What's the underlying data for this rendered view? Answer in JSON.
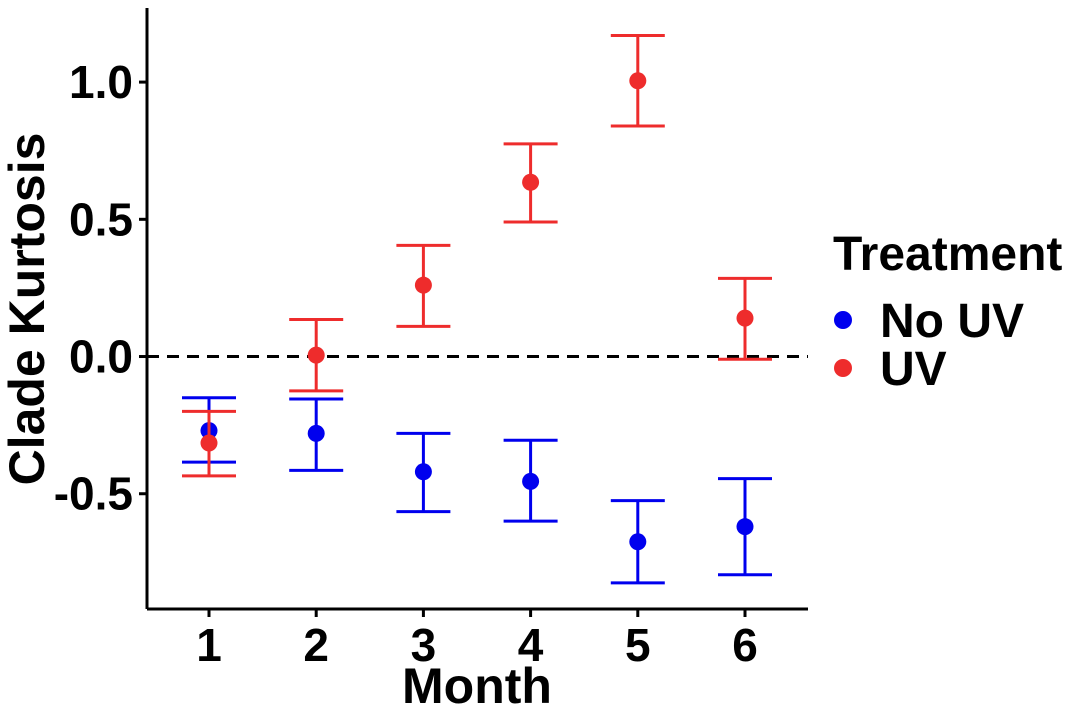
{
  "chart_data": {
    "type": "scatter",
    "xlabel": "Month",
    "ylabel": "Clade Kurtosis",
    "categories": [
      "1",
      "2",
      "3",
      "4",
      "5",
      "6"
    ],
    "ylim": [
      -0.92,
      1.27
    ],
    "y_ticks": [
      "-0.5",
      "0.0",
      "0.5",
      "1.0"
    ],
    "y_tick_values": [
      -0.5,
      0.0,
      0.5,
      1.0
    ],
    "reference_line": {
      "y": 0.0,
      "style": "dashed"
    },
    "grid": false,
    "legend": {
      "title": "Treatment",
      "position": "right"
    },
    "series": [
      {
        "name": "No UV",
        "color": "#0000ee",
        "values": [
          -0.27,
          -0.28,
          -0.42,
          -0.455,
          -0.675,
          -0.62
        ],
        "err_low": [
          -0.385,
          -0.415,
          -0.565,
          -0.6,
          -0.825,
          -0.795
        ],
        "err_high": [
          -0.15,
          -0.155,
          -0.28,
          -0.305,
          -0.525,
          -0.445
        ]
      },
      {
        "name": "UV",
        "color": "#ee2c2c",
        "values": [
          -0.315,
          0.005,
          0.26,
          0.635,
          1.005,
          0.14
        ],
        "err_low": [
          -0.435,
          -0.125,
          0.11,
          0.49,
          0.84,
          -0.01
        ],
        "err_high": [
          -0.2,
          0.135,
          0.405,
          0.775,
          1.17,
          0.285
        ]
      }
    ]
  }
}
